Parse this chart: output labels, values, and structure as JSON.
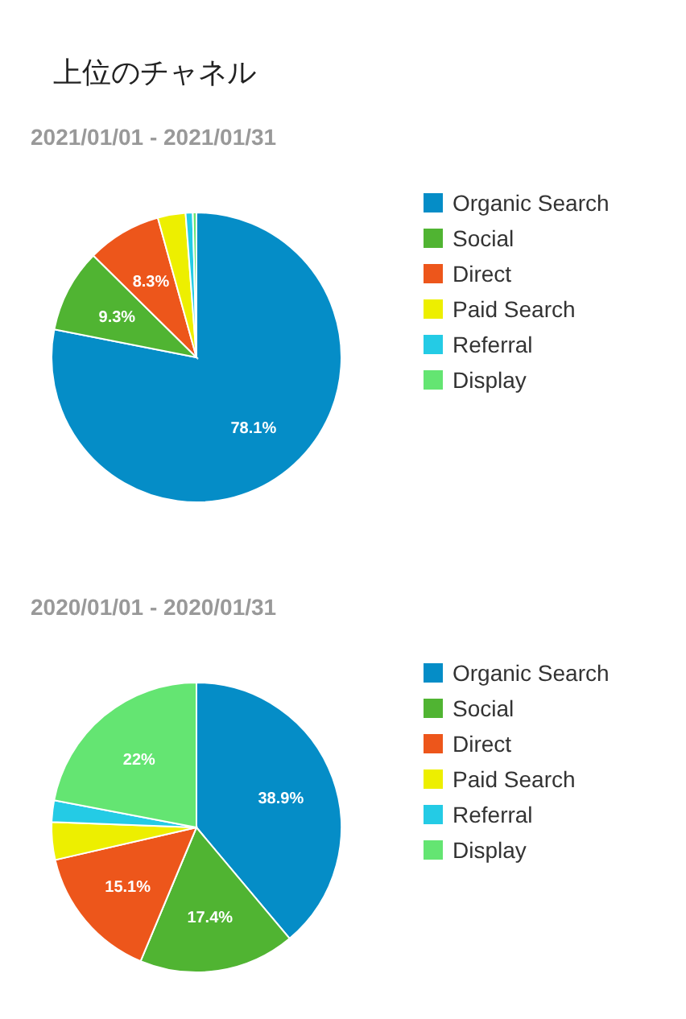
{
  "chart_data": [
    {
      "type": "pie",
      "title": "上位のチャネル",
      "subtitle": "2021/01/01 - 2021/01/31",
      "legend": "right",
      "categories": [
        "Organic Search",
        "Social",
        "Direct",
        "Paid Search",
        "Referral",
        "Display"
      ],
      "values": [
        78.1,
        9.3,
        8.3,
        3.1,
        0.8,
        0.4
      ],
      "value_labels": [
        "78.1%",
        "9.3%",
        "8.3%",
        null,
        null,
        null
      ],
      "colors": [
        "#058dc7",
        "#50b432",
        "#ed561b",
        "#edef00",
        "#24cbe5",
        "#64e572"
      ]
    },
    {
      "type": "pie",
      "subtitle": "2020/01/01 - 2020/01/31",
      "legend": "right",
      "categories": [
        "Organic Search",
        "Social",
        "Direct",
        "Paid Search",
        "Referral",
        "Display"
      ],
      "values": [
        38.9,
        17.4,
        15.1,
        4.2,
        2.4,
        22
      ],
      "value_labels": [
        "38.9%",
        "17.4%",
        "15.1%",
        null,
        null,
        "22%"
      ],
      "colors": [
        "#058dc7",
        "#50b432",
        "#ed561b",
        "#edef00",
        "#24cbe5",
        "#64e572"
      ]
    }
  ]
}
